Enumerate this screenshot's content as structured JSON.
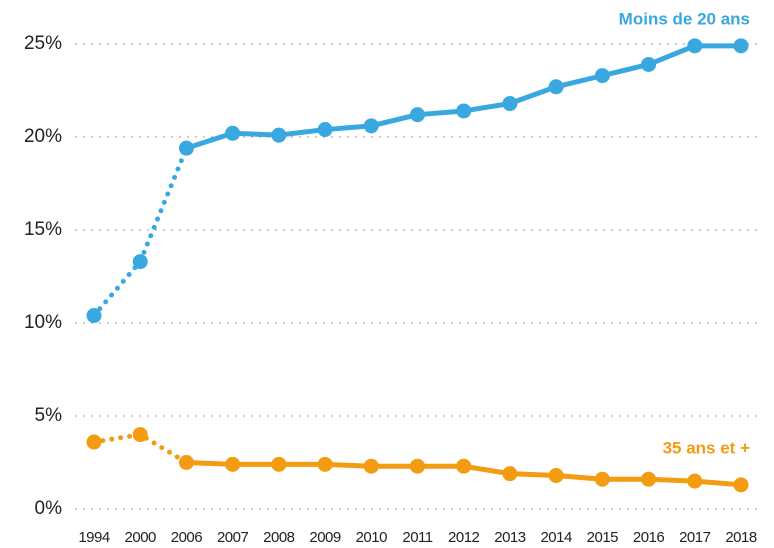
{
  "chart_data": {
    "type": "line",
    "categories": [
      "1994",
      "2000",
      "2006",
      "2007",
      "2008",
      "2009",
      "2010",
      "2011",
      "2012",
      "2013",
      "2014",
      "2015",
      "2016",
      "2017",
      "2018"
    ],
    "series": [
      {
        "name": "Moins de 20 ans",
        "color": "#3aa8e0",
        "dotted_until": "2006",
        "values": [
          10.4,
          13.3,
          19.4,
          20.2,
          20.1,
          20.4,
          20.6,
          21.2,
          21.4,
          21.8,
          22.7,
          23.3,
          23.9,
          24.9,
          24.9
        ]
      },
      {
        "name": "35 ans et +",
        "color": "#f39c12",
        "dotted_until": "2006",
        "values": [
          3.6,
          4.0,
          2.5,
          2.4,
          2.4,
          2.4,
          2.3,
          2.3,
          2.3,
          1.9,
          1.8,
          1.6,
          1.6,
          1.5,
          1.3
        ]
      }
    ],
    "ylim": [
      0,
      25
    ],
    "yticks": [
      {
        "value": 0,
        "label": "0%"
      },
      {
        "value": 5,
        "label": "5%"
      },
      {
        "value": 10,
        "label": "10%"
      },
      {
        "value": 15,
        "label": "15%"
      },
      {
        "value": 20,
        "label": "20%"
      },
      {
        "value": 25,
        "label": "25%"
      }
    ],
    "grid": true
  }
}
